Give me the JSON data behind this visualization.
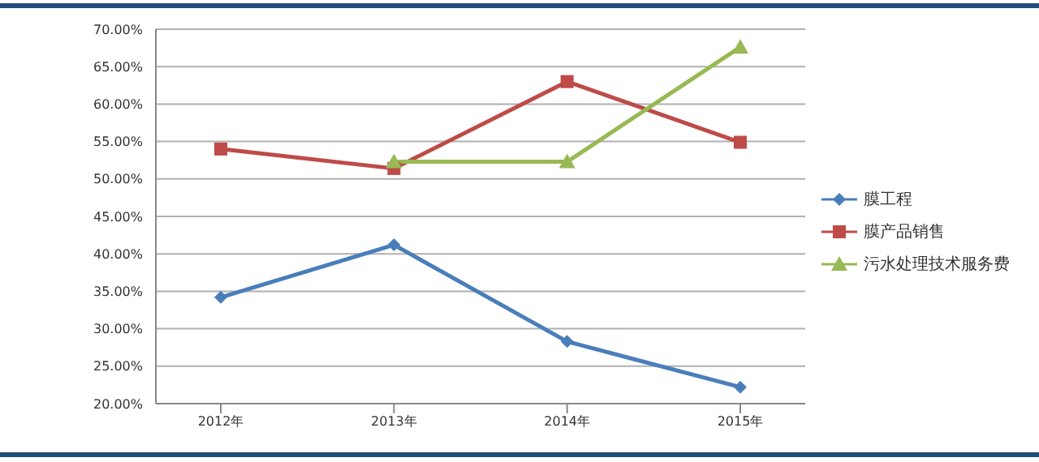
{
  "chart_data": {
    "type": "line",
    "categories": [
      "2012年",
      "2013年",
      "2014年",
      "2015年"
    ],
    "series": [
      {
        "name": "膜工程",
        "color": "#4a7ebb",
        "marker": "diamond",
        "values": [
          34.2,
          41.2,
          28.3,
          22.2
        ]
      },
      {
        "name": "膜产品销售",
        "color": "#be4b48",
        "marker": "square",
        "values": [
          54.0,
          51.4,
          63.0,
          54.9
        ]
      },
      {
        "name": "污水处理技术服务费",
        "color": "#98b954",
        "marker": "triangle",
        "values": [
          null,
          52.3,
          52.3,
          67.6
        ]
      }
    ],
    "ylim": [
      20,
      70
    ],
    "yticks": [
      {
        "value": 20,
        "label": "20.00%"
      },
      {
        "value": 25,
        "label": "25.00%"
      },
      {
        "value": 30,
        "label": "30.00%"
      },
      {
        "value": 35,
        "label": "35.00%"
      },
      {
        "value": 40,
        "label": "40.00%"
      },
      {
        "value": 45,
        "label": "45.00%"
      },
      {
        "value": 50,
        "label": "50.00%"
      },
      {
        "value": 55,
        "label": "55.00%"
      },
      {
        "value": 60,
        "label": "60.00%"
      },
      {
        "value": 65,
        "label": "65.00%"
      },
      {
        "value": 70,
        "label": "70.00%"
      }
    ],
    "grid": "y",
    "legend": "right",
    "line_style": "solid"
  }
}
